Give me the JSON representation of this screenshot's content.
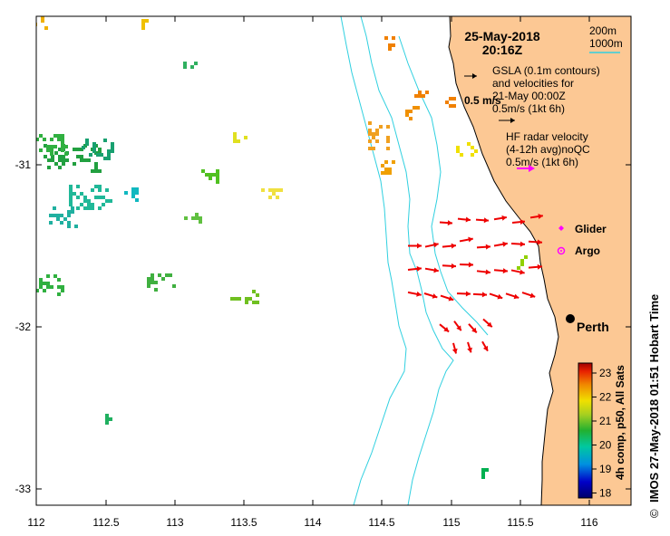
{
  "map": {
    "date": "25-May-2018",
    "time": "20:16Z",
    "x_ticks": [
      "112",
      "112.5",
      "113",
      "113.5",
      "114",
      "114.5",
      "115",
      "115.5",
      "116"
    ],
    "y_ticks": [
      "-31",
      "-32",
      "-33"
    ],
    "depth_legend": {
      "line1": "200m",
      "line2": "1000m",
      "color": "#30d0e0"
    },
    "gsla": {
      "line1": "GSLA (0.1m contours)",
      "line2": "and velocities for",
      "line3": "21-May 00:00Z",
      "line4": "0.5m/s (1kt 6h)",
      "overlay": "0.5 m/s"
    },
    "hf": {
      "line1": "HF radar velocity",
      "line2": "(4-12h avg)noQC",
      "line3": "0.5m/s (1kt 6h)",
      "arrow_color": "#ff00ff"
    },
    "legend": {
      "glider": "Glider",
      "argo": "Argo"
    },
    "city": "Perth",
    "colorbar": {
      "ticks": [
        "23",
        "22",
        "21",
        "20",
        "19",
        "18"
      ],
      "label": "4h comp, p50, All Sats"
    },
    "credit": "IMOS 27-May-2018 01:51 Hobart Time",
    "copyright": "©",
    "colors": {
      "land": "#fcc894",
      "current_arrow": "#ee0000",
      "isobath": "#30d0e0"
    }
  }
}
